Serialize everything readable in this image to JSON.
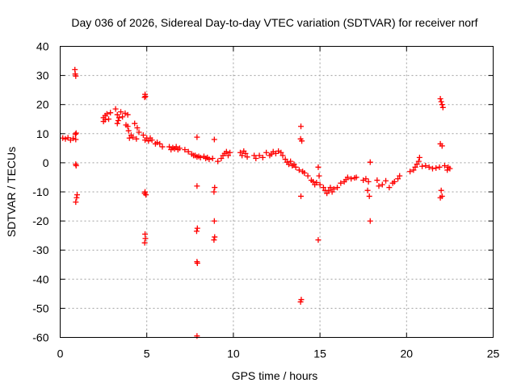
{
  "chart_data": {
    "type": "scatter",
    "title": "Day 036 of 2026, Sidereal Day-to-day VTEC variation (SDTVAR) for receiver norf",
    "xlabel": "GPS time / hours",
    "ylabel": "SDTVAR / TECUs",
    "xlim": [
      0,
      25
    ],
    "ylim": [
      -60,
      40
    ],
    "xticks": [
      0,
      5,
      10,
      15,
      20,
      25
    ],
    "yticks": [
      -60,
      -50,
      -40,
      -30,
      -20,
      -10,
      0,
      10,
      20,
      30,
      40
    ],
    "grid": true,
    "marker": "+",
    "color": "#ff0000",
    "series": [
      {
        "name": "SDTVAR",
        "points": [
          [
            0.15,
            8.5
          ],
          [
            0.3,
            8.2
          ],
          [
            0.45,
            8.6
          ],
          [
            0.6,
            7.8
          ],
          [
            0.75,
            8.4
          ],
          [
            0.9,
            8.0
          ],
          [
            0.92,
            10.2
          ],
          [
            0.88,
            9.8
          ],
          [
            0.9,
            -0.5
          ],
          [
            0.92,
            -1.0
          ],
          [
            0.95,
            -12
          ],
          [
            0.9,
            -13.5
          ],
          [
            0.98,
            -11
          ],
          [
            0.85,
            32
          ],
          [
            0.87,
            30.5
          ],
          [
            0.9,
            29.8
          ],
          [
            2.5,
            15.5
          ],
          [
            2.6,
            16.2
          ],
          [
            2.7,
            16.8
          ],
          [
            2.5,
            14.2
          ],
          [
            2.8,
            15.0
          ],
          [
            2.9,
            17.2
          ],
          [
            2.6,
            14.8
          ],
          [
            3.2,
            18.5
          ],
          [
            3.3,
            16.5
          ],
          [
            3.35,
            14.5
          ],
          [
            3.4,
            15.5
          ],
          [
            3.5,
            17.5
          ],
          [
            3.6,
            15.8
          ],
          [
            3.75,
            17.0
          ],
          [
            3.9,
            16.5
          ],
          [
            3.3,
            13.5
          ],
          [
            3.8,
            13.0
          ],
          [
            3.9,
            12.5
          ],
          [
            3.95,
            11.0
          ],
          [
            4.0,
            8.5
          ],
          [
            4.1,
            9.5
          ],
          [
            4.2,
            8.8
          ],
          [
            4.3,
            13.5
          ],
          [
            4.45,
            12.0
          ],
          [
            4.55,
            10.5
          ],
          [
            4.4,
            8.2
          ],
          [
            4.8,
            9.5
          ],
          [
            4.9,
            7.8
          ],
          [
            5.0,
            8.5
          ],
          [
            5.1,
            7.5
          ],
          [
            5.2,
            8.5
          ],
          [
            5.3,
            7.8
          ],
          [
            5.5,
            6.5
          ],
          [
            5.6,
            7.0
          ],
          [
            5.75,
            6.5
          ],
          [
            5.9,
            5.5
          ],
          [
            4.9,
            23.5
          ],
          [
            4.92,
            22.8
          ],
          [
            4.88,
            22.5
          ],
          [
            4.9,
            -10
          ],
          [
            4.95,
            -11
          ],
          [
            4.88,
            -10.5
          ],
          [
            4.9,
            -24.5
          ],
          [
            4.92,
            -26
          ],
          [
            4.88,
            -27.5
          ],
          [
            6.3,
            5.5
          ],
          [
            6.4,
            4.5
          ],
          [
            6.5,
            5.2
          ],
          [
            6.6,
            4.8
          ],
          [
            6.7,
            5.5
          ],
          [
            6.8,
            4.5
          ],
          [
            6.9,
            5.0
          ],
          [
            7.2,
            4.5
          ],
          [
            7.4,
            3.8
          ],
          [
            7.6,
            3.0
          ],
          [
            7.7,
            2.5
          ],
          [
            7.8,
            2.5
          ],
          [
            7.9,
            2.0
          ],
          [
            8.0,
            2.2
          ],
          [
            8.1,
            1.8
          ],
          [
            8.3,
            2.2
          ],
          [
            8.4,
            1.5
          ],
          [
            8.5,
            1.8
          ],
          [
            8.6,
            1.2
          ],
          [
            8.8,
            1.5
          ],
          [
            7.9,
            8.8
          ],
          [
            7.9,
            -8
          ],
          [
            7.92,
            -22.5
          ],
          [
            7.88,
            -23.5
          ],
          [
            7.9,
            -34
          ],
          [
            7.92,
            -34.5
          ],
          [
            7.9,
            -59.5
          ],
          [
            8.9,
            8
          ],
          [
            8.92,
            -8.5
          ],
          [
            8.88,
            -10
          ],
          [
            8.9,
            -20
          ],
          [
            8.92,
            -25.5
          ],
          [
            8.88,
            -26.5
          ],
          [
            9.1,
            0.5
          ],
          [
            9.3,
            1.5
          ],
          [
            9.4,
            2.5
          ],
          [
            9.5,
            3.2
          ],
          [
            9.6,
            3.8
          ],
          [
            9.7,
            2.5
          ],
          [
            9.8,
            3.5
          ],
          [
            10.4,
            3.5
          ],
          [
            10.5,
            2.5
          ],
          [
            10.6,
            4.0
          ],
          [
            10.7,
            3.2
          ],
          [
            10.8,
            2.0
          ],
          [
            11.2,
            2.5
          ],
          [
            11.3,
            1.5
          ],
          [
            11.5,
            2.5
          ],
          [
            11.7,
            1.8
          ],
          [
            11.9,
            3.5
          ],
          [
            12.1,
            2.5
          ],
          [
            12.2,
            3.0
          ],
          [
            12.3,
            3.8
          ],
          [
            12.45,
            3.2
          ],
          [
            12.6,
            4.0
          ],
          [
            12.75,
            3.5
          ],
          [
            12.85,
            2.5
          ],
          [
            13.0,
            1.2
          ],
          [
            13.1,
            0.2
          ],
          [
            13.2,
            -0.5
          ],
          [
            13.3,
            0.5
          ],
          [
            13.4,
            -1.0
          ],
          [
            13.5,
            -0.5
          ],
          [
            13.6,
            -1.5
          ],
          [
            13.8,
            -2.5
          ],
          [
            14.0,
            -3.0
          ],
          [
            13.9,
            12.5
          ],
          [
            13.88,
            8.2
          ],
          [
            13.95,
            7.5
          ],
          [
            13.9,
            -11.5
          ],
          [
            13.92,
            -47
          ],
          [
            13.88,
            -47.8
          ],
          [
            14.1,
            -3.5
          ],
          [
            14.3,
            -4.5
          ],
          [
            14.5,
            -6
          ],
          [
            14.6,
            -6.5
          ],
          [
            14.7,
            -7.5
          ],
          [
            14.8,
            -6.8
          ],
          [
            15.0,
            -7.5
          ],
          [
            14.9,
            -1.5
          ],
          [
            14.95,
            -4.5
          ],
          [
            14.9,
            -26.5
          ],
          [
            15.2,
            -8.5
          ],
          [
            15.3,
            -9.5
          ],
          [
            15.4,
            -10.5
          ],
          [
            15.5,
            -9.5
          ],
          [
            15.6,
            -8.5
          ],
          [
            15.7,
            -10.0
          ],
          [
            15.8,
            -9.0
          ],
          [
            16.0,
            -8.5
          ],
          [
            16.2,
            -7
          ],
          [
            16.4,
            -6.5
          ],
          [
            16.5,
            -5.8
          ],
          [
            16.6,
            -5.0
          ],
          [
            16.8,
            -5.5
          ],
          [
            17.0,
            -5.2
          ],
          [
            17.1,
            -5.0
          ],
          [
            17.5,
            -6.0
          ],
          [
            17.65,
            -5.5
          ],
          [
            17.8,
            -6.5
          ],
          [
            17.75,
            -9.5
          ],
          [
            17.85,
            -11.5
          ],
          [
            17.9,
            0.2
          ],
          [
            17.9,
            -20
          ],
          [
            18.3,
            -6
          ],
          [
            18.4,
            -8
          ],
          [
            18.6,
            -7.5
          ],
          [
            18.8,
            -6.2
          ],
          [
            19.0,
            -8.5
          ],
          [
            19.2,
            -7.0
          ],
          [
            19.3,
            -6.5
          ],
          [
            19.5,
            -5.5
          ],
          [
            19.6,
            -4.5
          ],
          [
            20.2,
            -3
          ],
          [
            20.4,
            -2.5
          ],
          [
            20.5,
            -1.5
          ],
          [
            20.6,
            -0.5
          ],
          [
            20.7,
            0.5
          ],
          [
            20.75,
            1.8
          ],
          [
            20.9,
            -1.2
          ],
          [
            21.1,
            -1.0
          ],
          [
            21.3,
            -1.5
          ],
          [
            21.5,
            -2.0
          ],
          [
            21.7,
            -1.8
          ],
          [
            21.9,
            -1.5
          ],
          [
            21.95,
            22.0
          ],
          [
            22.0,
            21.0
          ],
          [
            22.05,
            20.0
          ],
          [
            22.1,
            19.0
          ],
          [
            21.95,
            6.5
          ],
          [
            22.05,
            5.8
          ],
          [
            22.0,
            -9.5
          ],
          [
            22.05,
            -11.5
          ],
          [
            21.95,
            -12
          ],
          [
            22.2,
            -1.0
          ],
          [
            22.35,
            -2.5
          ],
          [
            22.4,
            -1.5
          ],
          [
            22.5,
            -2.0
          ]
        ]
      }
    ]
  }
}
